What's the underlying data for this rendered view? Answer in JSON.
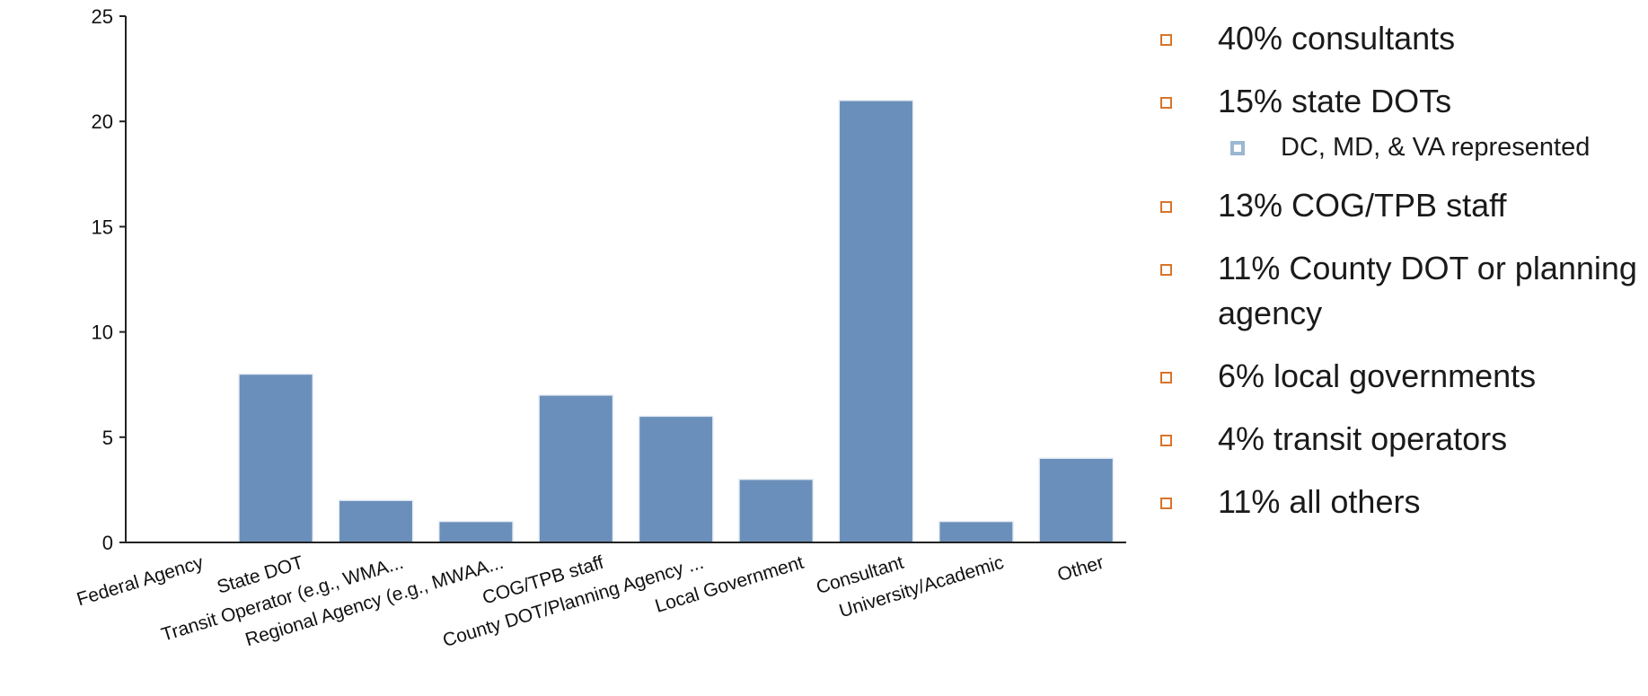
{
  "chart_data": {
    "type": "bar",
    "categories": [
      "Federal Agency",
      "State DOT",
      "Transit Operator (e.g., WMA...",
      "Regional Agency (e.g., MWAA...",
      "COG/TPB staff",
      "County DOT/Planning Agency ...",
      "Local Government",
      "Consultant",
      "University/Academic",
      "Other"
    ],
    "values": [
      0,
      8,
      2,
      1,
      7,
      6,
      3,
      21,
      1,
      4
    ],
    "ylim": [
      0,
      25
    ],
    "yticks": [
      "0",
      "5",
      "10",
      "15",
      "20",
      "25"
    ],
    "grid": false,
    "legend": "none",
    "bar_color": "#6a8fba"
  },
  "bullets": [
    {
      "text": "40% consultants"
    },
    {
      "text": "15% state DOTs",
      "sub": "DC, MD, & VA represented"
    },
    {
      "text": "13% COG/TPB staff"
    },
    {
      "text": "11% County DOT or planning agency"
    },
    {
      "text": "6% local governments"
    },
    {
      "text": "4% transit operators"
    },
    {
      "text": "11% all others"
    }
  ],
  "colors": {
    "bullet_marker": "#d9742b",
    "sub_bullet_marker": "#9bb7d2",
    "axis": "#222222"
  }
}
